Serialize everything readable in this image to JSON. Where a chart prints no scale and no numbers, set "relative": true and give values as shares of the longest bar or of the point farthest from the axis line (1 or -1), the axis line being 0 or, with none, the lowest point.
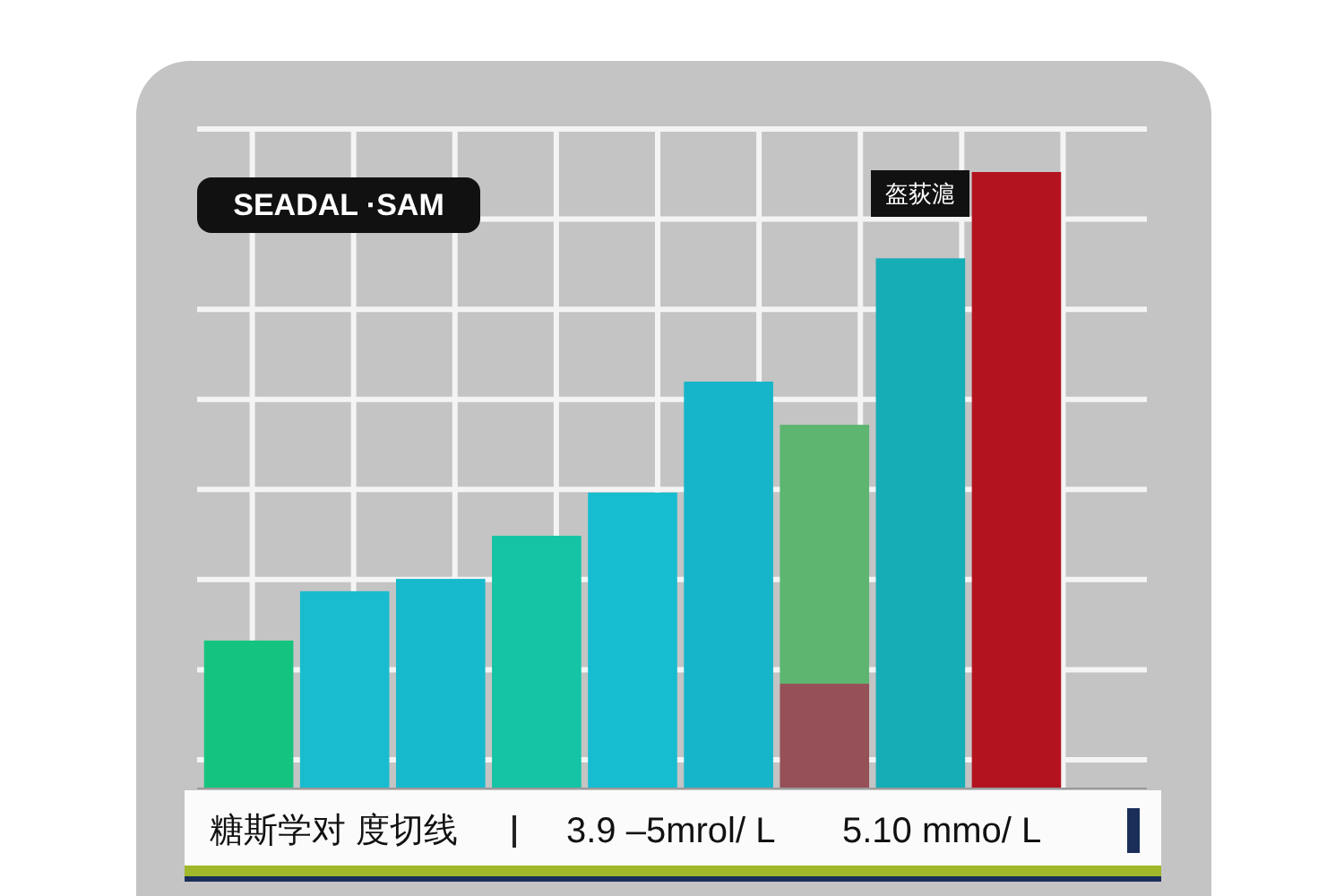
{
  "chart_data": {
    "type": "bar",
    "relative": true,
    "stacked": true,
    "grid": true,
    "categories": [
      null,
      null,
      null,
      null,
      null,
      null,
      null,
      null,
      null
    ],
    "series": [
      {
        "colors": [
          "#14c47e",
          "#19bccf",
          "#17b9cc",
          "#14c4a4",
          "#16bccf",
          "#17b5c9",
          "#965058",
          "#15adb6",
          "#b3131f"
        ],
        "values": [
          0.24,
          0.32,
          0.34,
          0.41,
          0.48,
          0.66,
          0.17,
          0.86,
          1.0
        ]
      },
      {
        "colors": [
          null,
          null,
          null,
          null,
          null,
          null,
          "#5db56f",
          null,
          null
        ],
        "values": [
          null,
          null,
          null,
          null,
          null,
          null,
          0.42,
          null,
          null
        ]
      }
    ],
    "annotations": [
      "SEADAL ·SAM",
      "盔荻滬",
      "糖斯学对 度切线",
      "3.9 –5mrol/ L",
      "5.10 mmo/ L"
    ]
  }
}
